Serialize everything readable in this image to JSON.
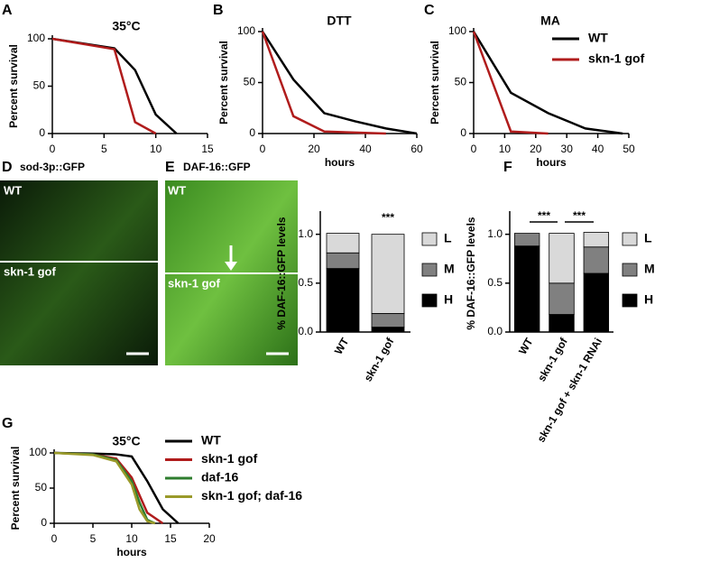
{
  "images": [
    {
      "panel": "D",
      "title": "sod-3p::GFP",
      "labels": [
        "WT",
        "skn-1 gof"
      ]
    },
    {
      "panel": "E",
      "title": "DAF-16::GFP",
      "labels": [
        "WT",
        "skn-1 gof"
      ]
    }
  ],
  "chart_data": [
    {
      "type": "line",
      "panel": "A",
      "title": "35°C",
      "ylabel": "Percent survival",
      "xlim": [
        0,
        15
      ],
      "xticks": [
        0,
        5,
        10,
        15
      ],
      "ylim": [
        0,
        100
      ],
      "yticks": [
        0,
        50,
        100
      ],
      "series": [
        {
          "color": "#000000",
          "x": [
            0,
            6,
            8,
            10,
            12
          ],
          "values": [
            100,
            90,
            67,
            20,
            0
          ]
        },
        {
          "color": "#b01c1c",
          "x": [
            0,
            6,
            8,
            10
          ],
          "values": [
            100,
            89,
            12,
            0
          ]
        }
      ]
    },
    {
      "type": "line",
      "panel": "B",
      "title": "DTT",
      "ylabel": "Percent survival",
      "xlabel": "hours",
      "xlim": [
        0,
        60
      ],
      "xticks": [
        0,
        20,
        40,
        60
      ],
      "ylim": [
        0,
        100
      ],
      "yticks": [
        0,
        50,
        100
      ],
      "series": [
        {
          "color": "#000000",
          "x": [
            0,
            12,
            24,
            36,
            48,
            60
          ],
          "values": [
            100,
            53,
            20,
            12,
            5,
            0
          ]
        },
        {
          "color": "#b01c1c",
          "x": [
            0,
            12,
            24,
            48
          ],
          "values": [
            100,
            17,
            2,
            0
          ]
        }
      ]
    },
    {
      "type": "line",
      "panel": "C",
      "title": "MA",
      "ylabel": "Percent survival",
      "xlabel": "hours",
      "xlim": [
        0,
        50
      ],
      "xticks": [
        0,
        10,
        20,
        30,
        40,
        50
      ],
      "ylim": [
        0,
        100
      ],
      "yticks": [
        0,
        50,
        100
      ],
      "series": [
        {
          "name": "WT",
          "color": "#000000",
          "x": [
            0,
            12,
            24,
            36,
            48
          ],
          "values": [
            100,
            40,
            20,
            5,
            0
          ]
        },
        {
          "name": "skn-1 gof",
          "color": "#b01c1c",
          "x": [
            0,
            12,
            24
          ],
          "values": [
            100,
            2,
            0
          ]
        }
      ]
    },
    {
      "type": "stacked_bar",
      "panel": "E",
      "ylabel": "% DAF-16::GFP levels",
      "categories": [
        "WT",
        "skn-1 gof"
      ],
      "ylim": [
        0,
        1.2
      ],
      "yticks": [
        {
          "value": 0,
          "label": "0.0"
        },
        {
          "value": 0.5,
          "label": "0.5"
        },
        {
          "value": 1,
          "label": "1.0"
        }
      ],
      "annotations": [
        "***"
      ],
      "series": [
        {
          "name": "H",
          "color": "#000000",
          "values": [
            0.65,
            0.05
          ]
        },
        {
          "name": "M",
          "color": "#808080",
          "values": [
            0.16,
            0.14
          ]
        },
        {
          "name": "L",
          "color": "#d9d9d9",
          "values": [
            0.2,
            0.81
          ]
        }
      ]
    },
    {
      "type": "stacked_bar",
      "panel": "F",
      "ylabel": "% DAF-16::GFP levels",
      "categories": [
        "WT",
        "skn-1 gof",
        "skn-1 gof + skn-1 RNAi"
      ],
      "ylim": [
        0,
        1.2
      ],
      "yticks": [
        {
          "value": 0,
          "label": "0.0"
        },
        {
          "value": 0.5,
          "label": "0.5"
        },
        {
          "value": 1,
          "label": "1.0"
        }
      ],
      "annotations": [
        "***",
        "***"
      ],
      "series": [
        {
          "name": "H",
          "color": "#000000",
          "values": [
            0.88,
            0.18,
            0.6
          ]
        },
        {
          "name": "M",
          "color": "#808080",
          "values": [
            0.13,
            0.32,
            0.27
          ]
        },
        {
          "name": "L",
          "color": "#d9d9d9",
          "values": [
            0,
            0.51,
            0.15
          ]
        }
      ]
    },
    {
      "type": "line",
      "panel": "G",
      "title": "35°C",
      "ylabel": "Percent survival",
      "xlabel": "hours",
      "xlim": [
        0,
        20
      ],
      "xticks": [
        0,
        5,
        10,
        15,
        20
      ],
      "ylim": [
        0,
        100
      ],
      "yticks": [
        0,
        50,
        100
      ],
      "series": [
        {
          "name": "WT",
          "color": "#000000",
          "x": [
            0,
            5,
            8,
            10,
            12,
            14,
            16
          ],
          "values": [
            100,
            99,
            98,
            95,
            60,
            20,
            0
          ]
        },
        {
          "name": "skn-1 gof",
          "color": "#b01c1c",
          "x": [
            0,
            5,
            8,
            10,
            12,
            14
          ],
          "values": [
            100,
            98,
            92,
            65,
            15,
            0
          ]
        },
        {
          "name": "daf-16",
          "color": "#2e7d2e",
          "x": [
            0,
            5,
            8,
            10,
            11,
            12,
            13
          ],
          "values": [
            100,
            98,
            90,
            60,
            30,
            5,
            0
          ]
        },
        {
          "name": "skn-1 gof; daf-16",
          "color": "#9a9a2a",
          "x": [
            0,
            5,
            8,
            10,
            11,
            12,
            13
          ],
          "values": [
            100,
            97,
            88,
            55,
            20,
            3,
            0
          ]
        }
      ]
    }
  ]
}
